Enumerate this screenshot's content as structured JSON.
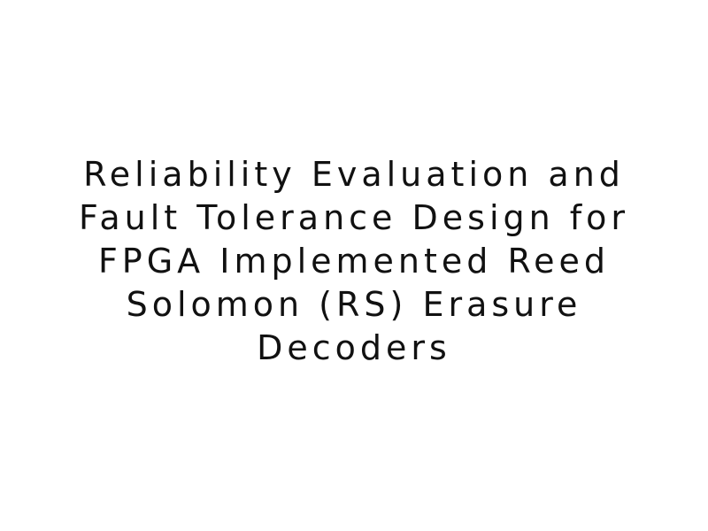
{
  "document": {
    "title_lines": [
      "Reliability Evaluation and",
      "Fault Tolerance Design for",
      "FPGA Implemented Reed",
      "Solomon (RS) Erasure",
      "Decoders"
    ],
    "text_color": "#111111",
    "background_color": "#ffffff"
  }
}
